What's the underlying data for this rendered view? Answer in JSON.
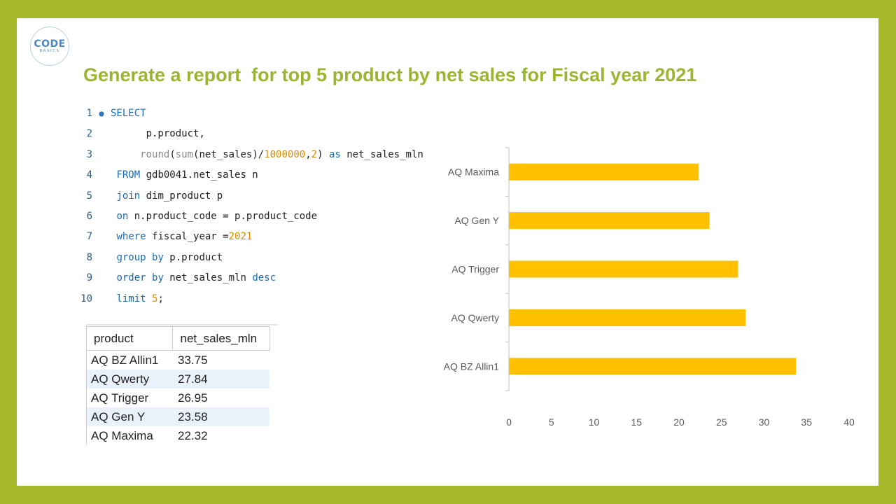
{
  "logo": {
    "main": "CODE",
    "sub": "BASICS"
  },
  "title": "Generate a report  for top 5 product by net sales for Fiscal year 2021",
  "code_lines": [
    {
      "n": "1",
      "marker": "●",
      "parts": [
        {
          "t": "SELECT",
          "c": "kw"
        }
      ]
    },
    {
      "n": "2",
      "marker": "",
      "parts": [
        {
          "t": "      p.product,",
          "c": ""
        }
      ]
    },
    {
      "n": "3",
      "marker": "",
      "parts": [
        {
          "t": "     ",
          "c": ""
        },
        {
          "t": "round",
          "c": "fn"
        },
        {
          "t": "(",
          "c": ""
        },
        {
          "t": "sum",
          "c": "fn"
        },
        {
          "t": "(net_sales)/",
          "c": ""
        },
        {
          "t": "1000000",
          "c": "num"
        },
        {
          "t": ",",
          "c": ""
        },
        {
          "t": "2",
          "c": "num"
        },
        {
          "t": ") ",
          "c": ""
        },
        {
          "t": "as",
          "c": "kw"
        },
        {
          "t": " net_sales_mln",
          "c": ""
        }
      ]
    },
    {
      "n": "4",
      "marker": "",
      "parts": [
        {
          "t": " ",
          "c": ""
        },
        {
          "t": "FROM",
          "c": "kw"
        },
        {
          "t": " gdb0041.net_sales n",
          "c": ""
        }
      ]
    },
    {
      "n": "5",
      "marker": "",
      "parts": [
        {
          "t": " ",
          "c": ""
        },
        {
          "t": "join",
          "c": "kw"
        },
        {
          "t": " dim_product p",
          "c": ""
        }
      ]
    },
    {
      "n": "6",
      "marker": "",
      "parts": [
        {
          "t": " ",
          "c": ""
        },
        {
          "t": "on",
          "c": "kw"
        },
        {
          "t": " n.product_code = p.product_code",
          "c": ""
        }
      ]
    },
    {
      "n": "7",
      "marker": "",
      "parts": [
        {
          "t": " ",
          "c": ""
        },
        {
          "t": "where",
          "c": "kw"
        },
        {
          "t": " fiscal_year =",
          "c": ""
        },
        {
          "t": "2021",
          "c": "num"
        }
      ]
    },
    {
      "n": "8",
      "marker": "",
      "parts": [
        {
          "t": " ",
          "c": ""
        },
        {
          "t": "group by",
          "c": "kw"
        },
        {
          "t": " p.product",
          "c": ""
        }
      ]
    },
    {
      "n": "9",
      "marker": "",
      "parts": [
        {
          "t": " ",
          "c": ""
        },
        {
          "t": "order by",
          "c": "kw"
        },
        {
          "t": " net_sales_mln ",
          "c": ""
        },
        {
          "t": "desc",
          "c": "kw"
        }
      ]
    },
    {
      "n": "10",
      "marker": "",
      "parts": [
        {
          "t": " ",
          "c": ""
        },
        {
          "t": "limit",
          "c": "kw"
        },
        {
          "t": " ",
          "c": ""
        },
        {
          "t": "5",
          "c": "num"
        },
        {
          "t": ";",
          "c": ""
        }
      ]
    }
  ],
  "table": {
    "headers": [
      "product",
      "net_sales_mln"
    ],
    "rows": [
      [
        "AQ BZ Allin1",
        "33.75"
      ],
      [
        "AQ Qwerty",
        "27.84"
      ],
      [
        "AQ Trigger",
        "26.95"
      ],
      [
        "AQ Gen Y",
        "23.58"
      ],
      [
        "AQ Maxima",
        "22.32"
      ]
    ]
  },
  "chart_data": {
    "type": "bar",
    "orientation": "horizontal",
    "categories": [
      "AQ Maxima",
      "AQ Gen Y",
      "AQ Trigger",
      "AQ Qwerty",
      "AQ BZ Allin1"
    ],
    "values": [
      22.32,
      23.58,
      26.95,
      27.84,
      33.75
    ],
    "xlim": [
      0,
      40
    ],
    "xticks": [
      0,
      5,
      10,
      15,
      20,
      25,
      30,
      35,
      40
    ],
    "grid": false,
    "bar_color": "#ffc000"
  },
  "colors": {
    "frame": "#a4b829",
    "title": "#9bb532",
    "keyword": "#1a6bb2",
    "number": "#d98c00",
    "row_alt": "#e9f1fb"
  }
}
